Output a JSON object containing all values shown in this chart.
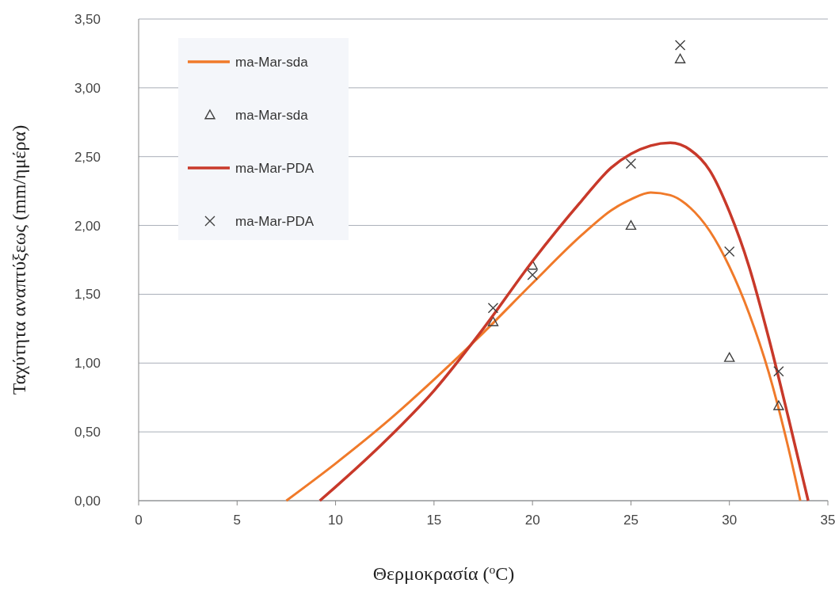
{
  "chart_data": {
    "type": "line",
    "xlabel": "Θερμοκρασία ($^{o}$C)",
    "ylabel": "Ταχύτητα αναπτύξεως (mm/ημέρα)",
    "xlim": [
      0,
      35
    ],
    "xticks": [
      0,
      5,
      10,
      15,
      20,
      25,
      30,
      35
    ],
    "ylim": [
      0,
      3.5
    ],
    "yticks": [
      {
        "value": 0,
        "label": "0,00"
      },
      {
        "value": 0.5,
        "label": "0,50"
      },
      {
        "value": 1,
        "label": "1,00"
      },
      {
        "value": 1.5,
        "label": "1,50"
      },
      {
        "value": 2,
        "label": "2,00"
      },
      {
        "value": 2.5,
        "label": "2,50"
      },
      {
        "value": 3,
        "label": "3,00"
      },
      {
        "value": 3.5,
        "label": "3,50"
      }
    ],
    "grid": "y",
    "legend": "top left",
    "series": [
      {
        "name": "ma-Mar-sda",
        "color": "#f07a2a",
        "marker": "none",
        "x": [
          7.5,
          10,
          12.5,
          15,
          17.5,
          20,
          22.5,
          24,
          25,
          26,
          27,
          28,
          29,
          30,
          31,
          32,
          33,
          33.6
        ],
        "values": [
          0,
          0.27,
          0.56,
          0.88,
          1.22,
          1.58,
          1.93,
          2.11,
          2.19,
          2.24,
          2.22,
          2.13,
          1.96,
          1.7,
          1.36,
          0.93,
          0.38,
          0
        ]
      },
      {
        "name": "ma-Mar-sda",
        "type": "scatter",
        "color": "#404040",
        "marker": "triangle",
        "x": [
          18,
          20,
          25,
          27.5,
          30,
          32.5
        ],
        "values": [
          1.3,
          1.71,
          2.0,
          3.21,
          1.04,
          0.69
        ]
      },
      {
        "name": "ma-Mar-PDA",
        "color": "#c8392a",
        "marker": "none",
        "x": [
          9.2,
          10,
          12.5,
          15,
          17.5,
          20,
          22.5,
          24,
          25,
          26,
          27,
          28,
          29,
          30,
          31,
          32,
          33,
          34
        ],
        "values": [
          0,
          0.1,
          0.43,
          0.8,
          1.25,
          1.74,
          2.18,
          2.42,
          2.52,
          2.58,
          2.6,
          2.55,
          2.4,
          2.1,
          1.7,
          1.18,
          0.6,
          0
        ]
      },
      {
        "name": "ma-Mar-PDA",
        "type": "scatter",
        "color": "#404040",
        "marker": "cross",
        "x": [
          18,
          20,
          25,
          27.5,
          30,
          32.5
        ],
        "values": [
          1.4,
          1.64,
          2.45,
          3.31,
          1.81,
          0.94
        ]
      }
    ]
  }
}
